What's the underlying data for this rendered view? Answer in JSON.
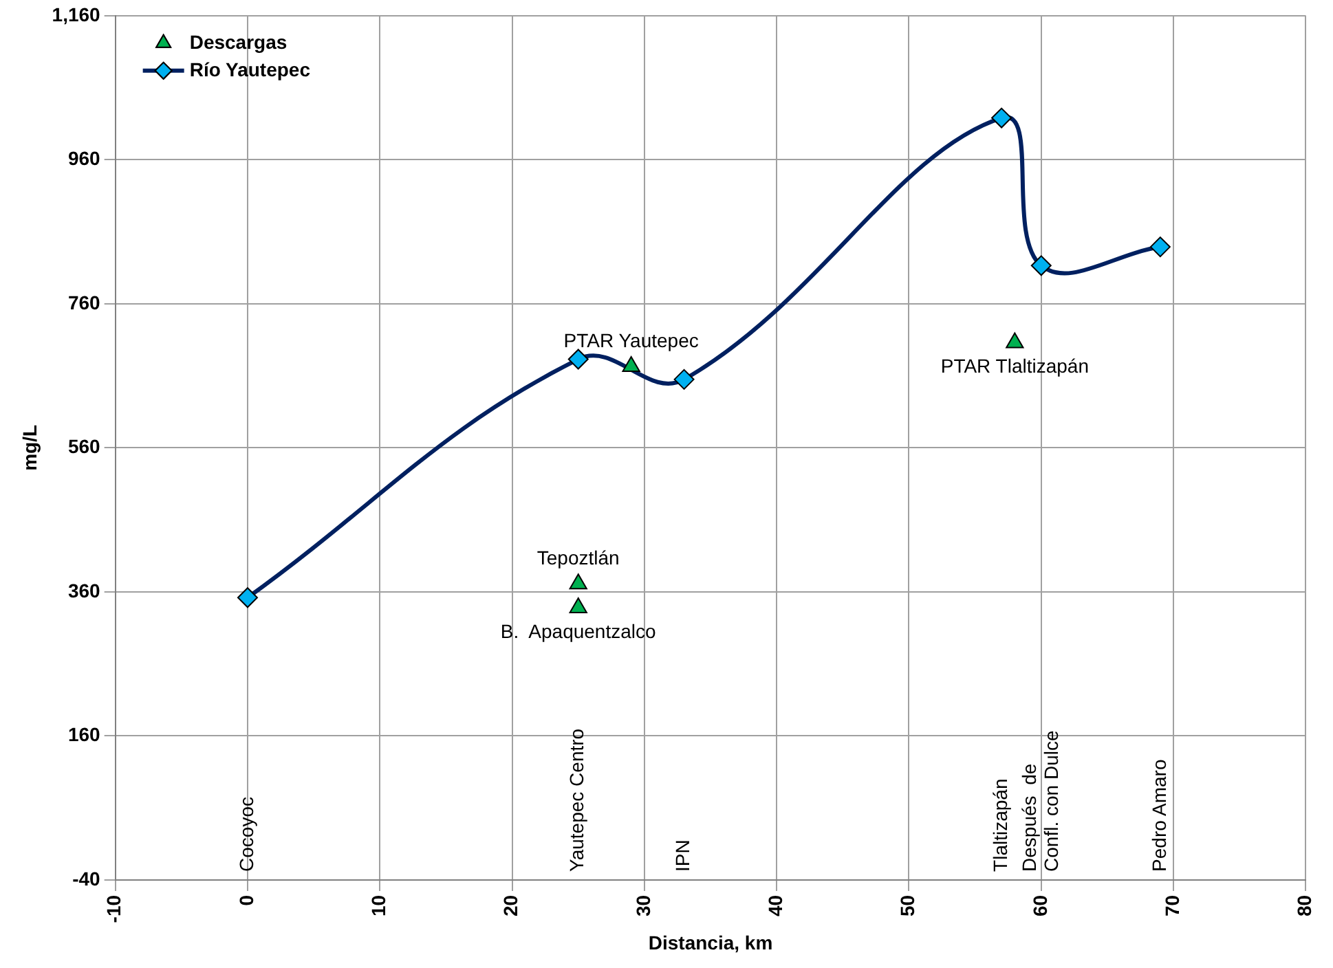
{
  "chart_data": {
    "type": "scatter",
    "xlabel": "Distancia, km",
    "ylabel": "mg/L",
    "xlim": [
      -10,
      80
    ],
    "xticks": [
      -10,
      0,
      10,
      20,
      30,
      40,
      50,
      60,
      70,
      80
    ],
    "ylim": [
      -40,
      1160
    ],
    "yticks": [
      -40,
      160,
      360,
      560,
      760,
      960,
      {
        "value": 1160,
        "label": "1,160"
      }
    ],
    "grid": true,
    "legend": "top left",
    "series": [
      {
        "name": "Descargas",
        "type": "scatter",
        "marker": "triangle",
        "color": "#00b050",
        "x": [
          25,
          25,
          29,
          58
        ],
        "values": [
          371,
          338,
          673,
          706
        ]
      },
      {
        "name": "Río Yautepec",
        "type": "line",
        "marker": "diamond",
        "color": "#002060",
        "x": [
          0,
          25,
          33,
          57,
          60,
          69
        ],
        "values": [
          352,
          683,
          655,
          1018,
          813,
          839
        ]
      }
    ],
    "annotations": [
      {
        "text": "Tepoztlán",
        "x": 25,
        "y": 371
      },
      {
        "text": "B.  Apaquentzalco",
        "x": 25,
        "y": 338
      },
      {
        "text": "PTAR Yautepec",
        "x": 29,
        "y": 673
      },
      {
        "text": "PTAR Tlaltizapán",
        "x": 58,
        "y": 706
      },
      "Cocoyoc",
      "Yautepec Centro",
      "IPN",
      "Tlaltizapán",
      "Después  de\nConfl. con Dulce",
      "Pedro Amaro"
    ]
  }
}
